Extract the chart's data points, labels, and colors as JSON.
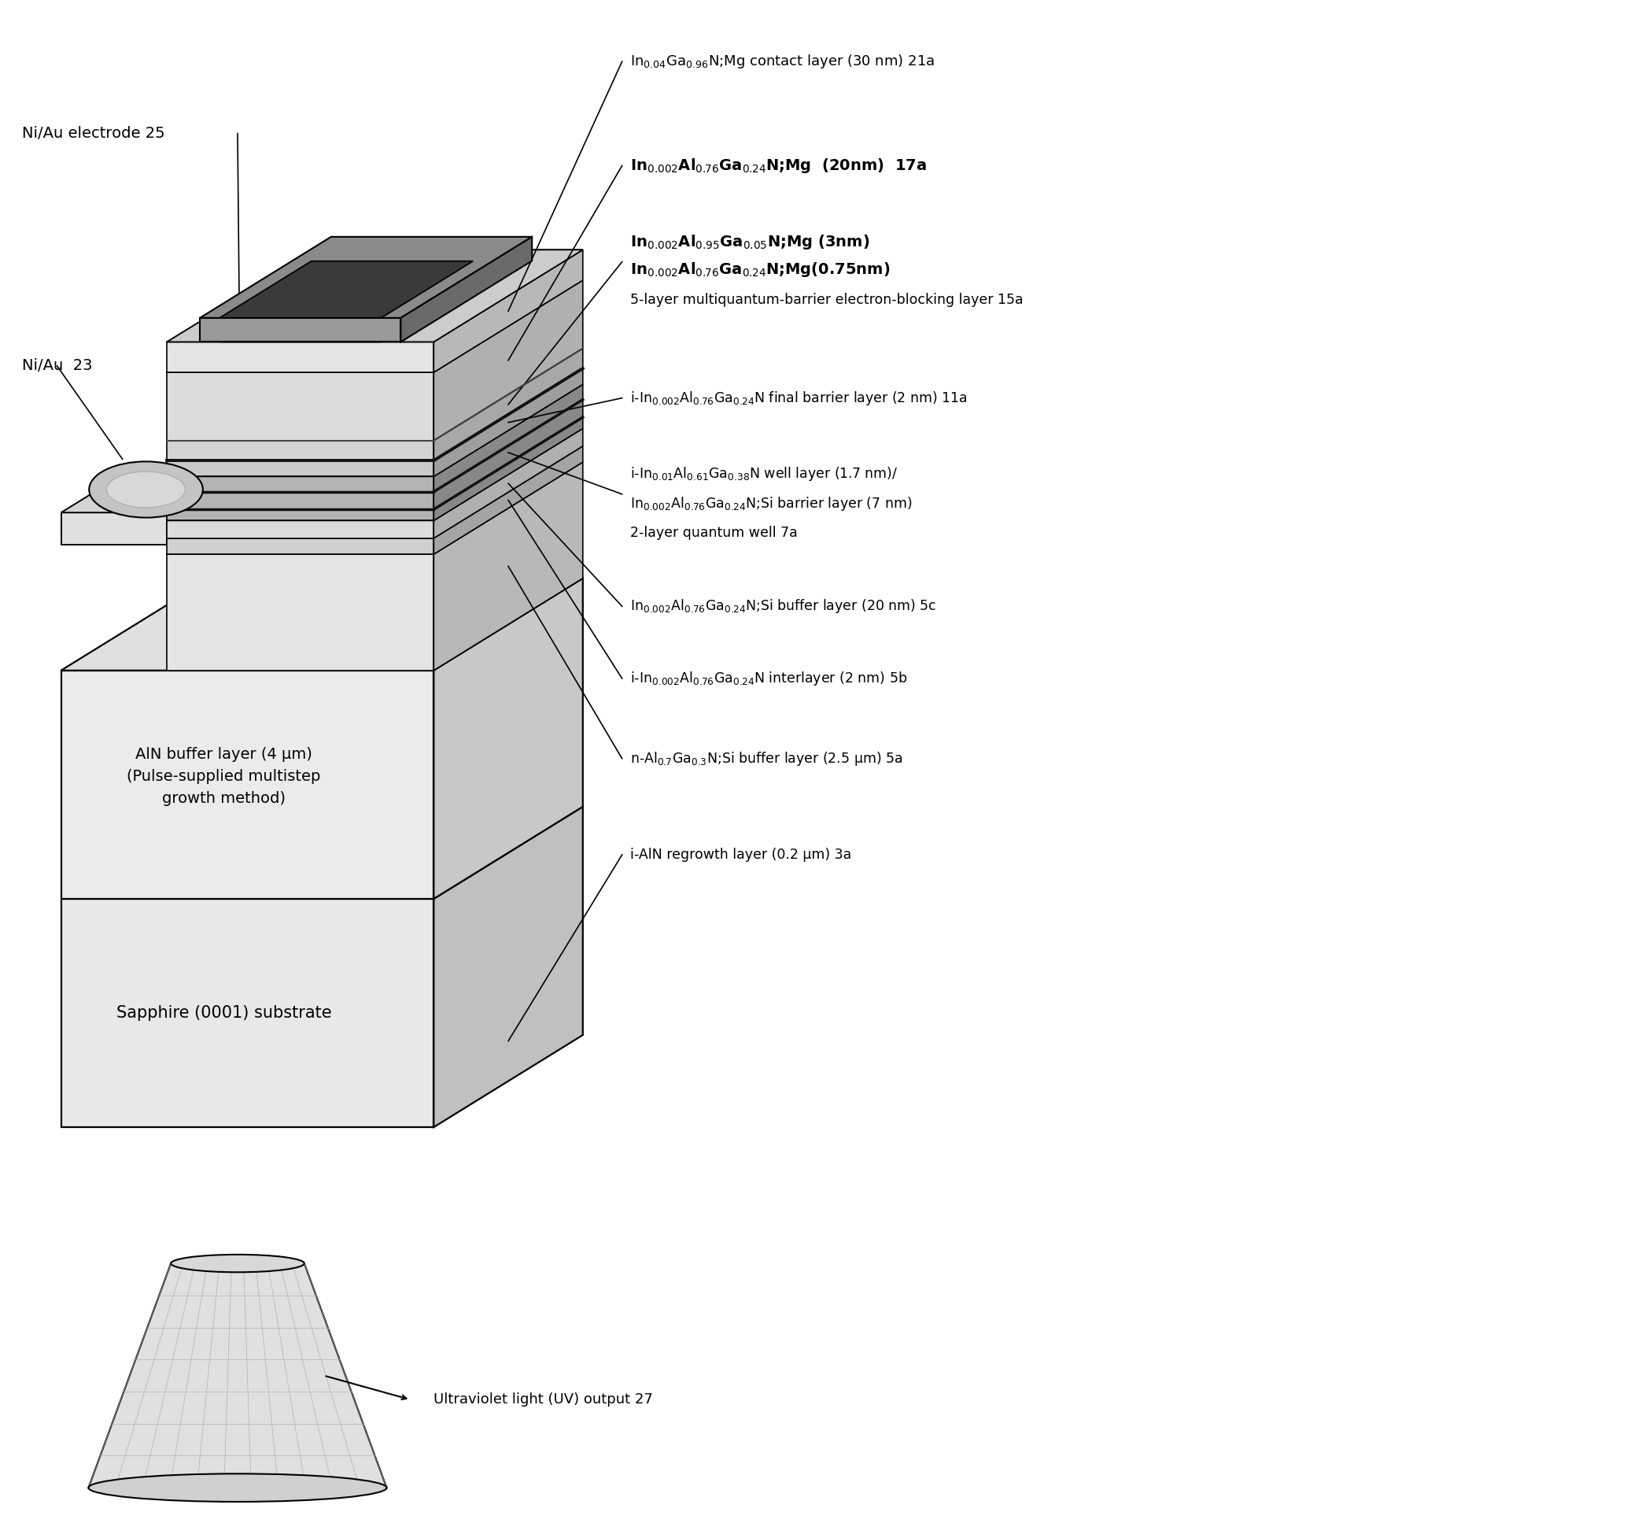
{
  "bg_color": "#ffffff",
  "labels": {
    "layer_21a": "In$_{0.04}$Ga$_{0.96}$N;Mg contact layer (30 nm) 21a",
    "layer_17a": "In$_{0.002}$Al$_{0.76}$Ga$_{0.24}$N;Mg  (20nm)  17a",
    "layer_15a_l1": "In$_{0.002}$Al$_{0.95}$Ga$_{0.05}$N;Mg (3nm)",
    "layer_15a_l2": "In$_{0.002}$Al$_{0.76}$Ga$_{0.24}$N;Mg(0.75nm)",
    "layer_15a_l3": "5-layer multiquantum-barrier electron-blocking layer 15a",
    "layer_11a": "i-In$_{0.002}$Al$_{0.76}$Ga$_{0.24}$N final barrier layer (2 nm) 11a",
    "layer_7a_l1": "i-In$_{0.01}$Al$_{0.61}$Ga$_{0.38}$N well layer (1.7 nm)/",
    "layer_7a_l2": "In$_{0.002}$Al$_{0.76}$Ga$_{0.24}$N;Si barrier layer (7 nm)",
    "layer_7a_l3": "2-layer quantum well 7a",
    "layer_5c": "In$_{0.002}$Al$_{0.76}$Ga$_{0.24}$N;Si buffer layer (20 nm) 5c",
    "layer_5b": "i-In$_{0.002}$Al$_{0.76}$Ga$_{0.24}$N interlayer (2 nm) 5b",
    "layer_5a": "n-Al$_{0.7}$Ga$_{0.3}$N;Si buffer layer (2.5 μm) 5a",
    "layer_3a": "i-AlN regrowth layer (0.2 μm) 3a",
    "niAu25": "Ni/Au electrode 25",
    "niAu23": "Ni/Au  23",
    "AlN_buf": "AlN buffer layer (4 μm)\n(Pulse-supplied multistep\ngrowth method)",
    "sapphire": "Sapphire (0001) substrate",
    "uv": "Ultraviolet light (UV) output 27"
  },
  "note_fontsize": 14,
  "bold_fontsize": 16
}
